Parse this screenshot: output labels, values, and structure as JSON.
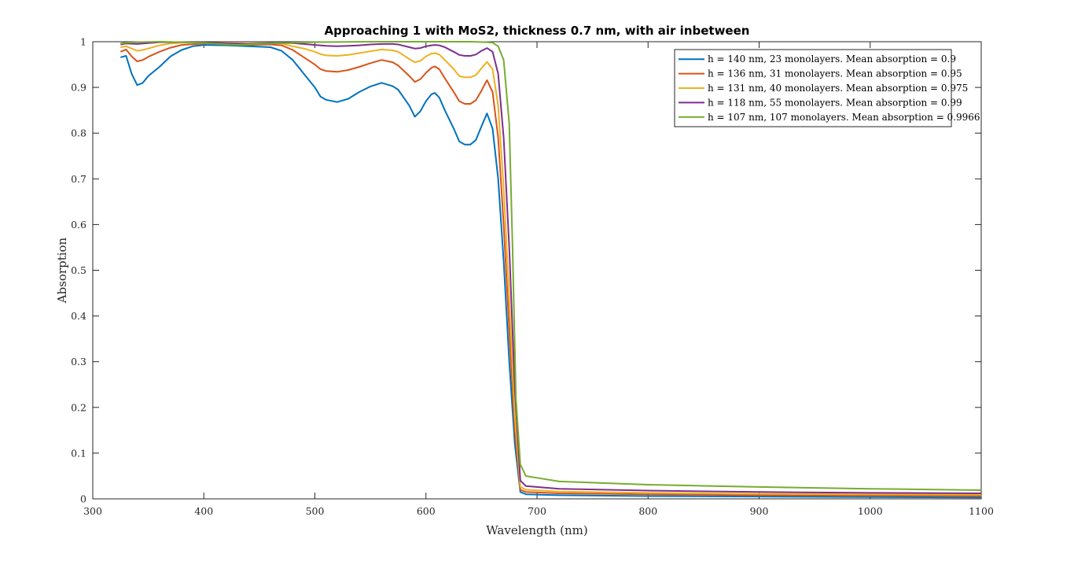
{
  "chart_data": {
    "type": "line",
    "title": "Approaching 1 with MoS2, thickness 0.7 nm, with air inbetween",
    "xlabel": "Wavelength (nm)",
    "ylabel": "Absorption",
    "xlim": [
      300,
      1100
    ],
    "ylim": [
      0,
      1
    ],
    "x_ticks": [
      300,
      400,
      500,
      600,
      700,
      800,
      900,
      1000,
      1100
    ],
    "x_tick_labels": [
      "300",
      "400",
      "500",
      "600",
      "700",
      "800",
      "900",
      "1000",
      "1100"
    ],
    "y_ticks": [
      0,
      0.1,
      0.2,
      0.3,
      0.4,
      0.5,
      0.6,
      0.7,
      0.8,
      0.9,
      1
    ],
    "y_tick_labels": [
      "0",
      "0.1",
      "0.2",
      "0.3",
      "0.4",
      "0.5",
      "0.6",
      "0.7",
      "0.8",
      "0.9",
      "1"
    ],
    "grid": false,
    "legend_position": "top-right",
    "series": [
      {
        "name": "h = 140 nm, 23 monolayers. Mean absorption = 0.9",
        "color": "#0072BD",
        "points": [
          [
            325,
            0.966
          ],
          [
            330,
            0.969
          ],
          [
            335,
            0.93
          ],
          [
            340,
            0.905
          ],
          [
            345,
            0.91
          ],
          [
            350,
            0.925
          ],
          [
            360,
            0.945
          ],
          [
            370,
            0.968
          ],
          [
            380,
            0.982
          ],
          [
            390,
            0.99
          ],
          [
            400,
            0.993
          ],
          [
            420,
            0.992
          ],
          [
            440,
            0.99
          ],
          [
            460,
            0.988
          ],
          [
            470,
            0.98
          ],
          [
            480,
            0.96
          ],
          [
            490,
            0.93
          ],
          [
            500,
            0.9
          ],
          [
            505,
            0.88
          ],
          [
            510,
            0.873
          ],
          [
            520,
            0.868
          ],
          [
            530,
            0.875
          ],
          [
            540,
            0.89
          ],
          [
            550,
            0.902
          ],
          [
            560,
            0.91
          ],
          [
            570,
            0.903
          ],
          [
            575,
            0.895
          ],
          [
            585,
            0.86
          ],
          [
            590,
            0.836
          ],
          [
            595,
            0.848
          ],
          [
            600,
            0.87
          ],
          [
            605,
            0.885
          ],
          [
            608,
            0.888
          ],
          [
            612,
            0.878
          ],
          [
            617,
            0.85
          ],
          [
            625,
            0.81
          ],
          [
            630,
            0.782
          ],
          [
            635,
            0.775
          ],
          [
            640,
            0.775
          ],
          [
            645,
            0.785
          ],
          [
            650,
            0.815
          ],
          [
            655,
            0.843
          ],
          [
            660,
            0.81
          ],
          [
            665,
            0.7
          ],
          [
            670,
            0.52
          ],
          [
            675,
            0.3
          ],
          [
            680,
            0.12
          ],
          [
            685,
            0.015
          ],
          [
            690,
            0.01
          ],
          [
            720,
            0.008
          ],
          [
            800,
            0.006
          ],
          [
            900,
            0.005
          ],
          [
            1000,
            0.004
          ],
          [
            1100,
            0.003
          ]
        ]
      },
      {
        "name": "h = 136 nm, 31 monolayers. Mean absorption = 0.95",
        "color": "#D95319",
        "points": [
          [
            325,
            0.978
          ],
          [
            330,
            0.983
          ],
          [
            335,
            0.968
          ],
          [
            340,
            0.957
          ],
          [
            345,
            0.96
          ],
          [
            350,
            0.967
          ],
          [
            360,
            0.978
          ],
          [
            370,
            0.987
          ],
          [
            380,
            0.993
          ],
          [
            400,
            0.996
          ],
          [
            420,
            0.995
          ],
          [
            440,
            0.993
          ],
          [
            460,
            0.994
          ],
          [
            470,
            0.992
          ],
          [
            480,
            0.982
          ],
          [
            490,
            0.966
          ],
          [
            500,
            0.95
          ],
          [
            505,
            0.94
          ],
          [
            510,
            0.936
          ],
          [
            520,
            0.934
          ],
          [
            530,
            0.938
          ],
          [
            540,
            0.945
          ],
          [
            550,
            0.953
          ],
          [
            560,
            0.96
          ],
          [
            570,
            0.955
          ],
          [
            575,
            0.948
          ],
          [
            585,
            0.925
          ],
          [
            590,
            0.912
          ],
          [
            595,
            0.918
          ],
          [
            600,
            0.932
          ],
          [
            605,
            0.943
          ],
          [
            608,
            0.946
          ],
          [
            612,
            0.94
          ],
          [
            617,
            0.92
          ],
          [
            625,
            0.89
          ],
          [
            630,
            0.87
          ],
          [
            635,
            0.864
          ],
          [
            640,
            0.864
          ],
          [
            645,
            0.872
          ],
          [
            650,
            0.893
          ],
          [
            655,
            0.916
          ],
          [
            660,
            0.89
          ],
          [
            665,
            0.79
          ],
          [
            670,
            0.6
          ],
          [
            675,
            0.37
          ],
          [
            680,
            0.15
          ],
          [
            685,
            0.02
          ],
          [
            690,
            0.015
          ],
          [
            720,
            0.012
          ],
          [
            800,
            0.01
          ],
          [
            900,
            0.008
          ],
          [
            1000,
            0.007
          ],
          [
            1100,
            0.006
          ]
        ]
      },
      {
        "name": "h = 131 nm, 40 monolayers. Mean absorption = 0.975",
        "color": "#EDB120",
        "points": [
          [
            325,
            0.988
          ],
          [
            330,
            0.99
          ],
          [
            335,
            0.985
          ],
          [
            340,
            0.98
          ],
          [
            345,
            0.982
          ],
          [
            350,
            0.985
          ],
          [
            360,
            0.992
          ],
          [
            370,
            0.996
          ],
          [
            380,
            0.998
          ],
          [
            400,
            0.998
          ],
          [
            420,
            0.997
          ],
          [
            440,
            0.996
          ],
          [
            460,
            0.997
          ],
          [
            470,
            0.996
          ],
          [
            480,
            0.99
          ],
          [
            490,
            0.985
          ],
          [
            500,
            0.978
          ],
          [
            505,
            0.973
          ],
          [
            510,
            0.97
          ],
          [
            520,
            0.969
          ],
          [
            530,
            0.971
          ],
          [
            540,
            0.975
          ],
          [
            550,
            0.979
          ],
          [
            560,
            0.983
          ],
          [
            570,
            0.981
          ],
          [
            575,
            0.978
          ],
          [
            585,
            0.962
          ],
          [
            590,
            0.955
          ],
          [
            595,
            0.958
          ],
          [
            600,
            0.968
          ],
          [
            605,
            0.974
          ],
          [
            608,
            0.975
          ],
          [
            612,
            0.972
          ],
          [
            617,
            0.96
          ],
          [
            625,
            0.94
          ],
          [
            630,
            0.925
          ],
          [
            635,
            0.922
          ],
          [
            640,
            0.922
          ],
          [
            645,
            0.927
          ],
          [
            650,
            0.942
          ],
          [
            655,
            0.956
          ],
          [
            660,
            0.94
          ],
          [
            665,
            0.86
          ],
          [
            670,
            0.68
          ],
          [
            675,
            0.44
          ],
          [
            680,
            0.18
          ],
          [
            685,
            0.026
          ],
          [
            690,
            0.02
          ],
          [
            720,
            0.016
          ],
          [
            800,
            0.013
          ],
          [
            900,
            0.011
          ],
          [
            1000,
            0.01
          ],
          [
            1100,
            0.009
          ]
        ]
      },
      {
        "name": "h = 118 nm, 55 monolayers. Mean absorption = 0.99",
        "color": "#7E2F8E",
        "points": [
          [
            325,
            0.994
          ],
          [
            330,
            0.996
          ],
          [
            340,
            0.995
          ],
          [
            350,
            0.997
          ],
          [
            360,
            0.999
          ],
          [
            380,
            0.999
          ],
          [
            400,
            0.998
          ],
          [
            420,
            0.996
          ],
          [
            440,
            0.995
          ],
          [
            460,
            0.997
          ],
          [
            480,
            0.997
          ],
          [
            490,
            0.995
          ],
          [
            500,
            0.993
          ],
          [
            510,
            0.991
          ],
          [
            520,
            0.99
          ],
          [
            530,
            0.991
          ],
          [
            540,
            0.992
          ],
          [
            550,
            0.994
          ],
          [
            560,
            0.995
          ],
          [
            570,
            0.995
          ],
          [
            575,
            0.994
          ],
          [
            585,
            0.988
          ],
          [
            590,
            0.985
          ],
          [
            595,
            0.986
          ],
          [
            600,
            0.99
          ],
          [
            605,
            0.992
          ],
          [
            608,
            0.993
          ],
          [
            612,
            0.992
          ],
          [
            617,
            0.988
          ],
          [
            625,
            0.978
          ],
          [
            630,
            0.971
          ],
          [
            635,
            0.969
          ],
          [
            640,
            0.969
          ],
          [
            645,
            0.972
          ],
          [
            650,
            0.98
          ],
          [
            655,
            0.986
          ],
          [
            660,
            0.978
          ],
          [
            665,
            0.93
          ],
          [
            670,
            0.79
          ],
          [
            675,
            0.55
          ],
          [
            680,
            0.24
          ],
          [
            685,
            0.04
          ],
          [
            690,
            0.028
          ],
          [
            720,
            0.022
          ],
          [
            800,
            0.018
          ],
          [
            900,
            0.015
          ],
          [
            1000,
            0.013
          ],
          [
            1100,
            0.012
          ]
        ]
      },
      {
        "name": "h = 107 nm, 107 monolayers. Mean absorption = 0.9966",
        "color": "#77AC30",
        "points": [
          [
            325,
            0.996
          ],
          [
            330,
            0.998
          ],
          [
            340,
            0.999
          ],
          [
            360,
            1.0
          ],
          [
            380,
            0.999
          ],
          [
            400,
            0.997
          ],
          [
            420,
            0.994
          ],
          [
            430,
            0.993
          ],
          [
            440,
            0.994
          ],
          [
            460,
            0.996
          ],
          [
            480,
            0.998
          ],
          [
            500,
            0.999
          ],
          [
            550,
            1.0
          ],
          [
            600,
            1.0
          ],
          [
            640,
            1.0
          ],
          [
            655,
            0.999
          ],
          [
            660,
            0.998
          ],
          [
            665,
            0.99
          ],
          [
            670,
            0.96
          ],
          [
            675,
            0.82
          ],
          [
            678,
            0.55
          ],
          [
            681,
            0.22
          ],
          [
            685,
            0.075
          ],
          [
            690,
            0.05
          ],
          [
            700,
            0.046
          ],
          [
            720,
            0.038
          ],
          [
            800,
            0.031
          ],
          [
            900,
            0.026
          ],
          [
            1000,
            0.022
          ],
          [
            1100,
            0.019
          ]
        ]
      }
    ]
  }
}
